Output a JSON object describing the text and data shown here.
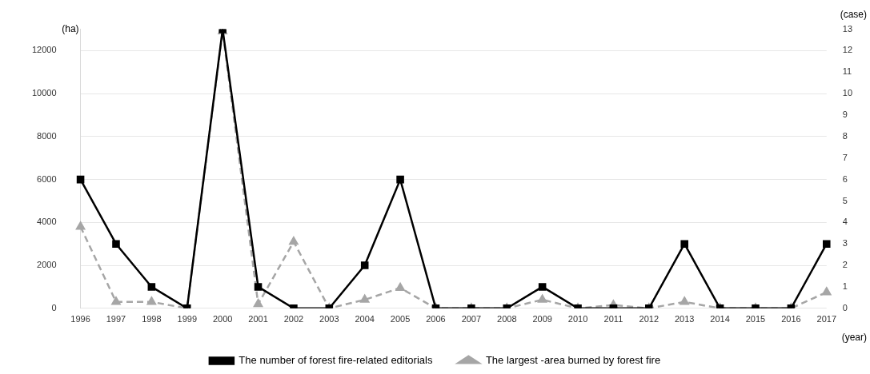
{
  "chart_data": {
    "type": "line",
    "ylabel": "(ha)",
    "y2label": "(case)",
    "xlabel": "(year)",
    "categories": [
      "1996",
      "1997",
      "1998",
      "1999",
      "2000",
      "2001",
      "2002",
      "2003",
      "2004",
      "2005",
      "2006",
      "2007",
      "2008",
      "2009",
      "2010",
      "2011",
      "2012",
      "2013",
      "2014",
      "2015",
      "2016",
      "2017"
    ],
    "series": [
      {
        "name": "The largest -area burned by forest fire",
        "color": "#a6a6a6",
        "marker": "triangle",
        "line_style": "dashed",
        "values": [
          3800,
          300,
          300,
          0,
          12900,
          200,
          3100,
          0,
          400,
          950,
          0,
          0,
          0,
          400,
          0,
          150,
          0,
          300,
          0,
          0,
          0,
          750
        ]
      },
      {
        "name": "The number of forest fire-related editorials",
        "color": "#000000",
        "marker": "square",
        "line_style": "solid",
        "axis": "y2",
        "values": [
          6,
          3,
          1,
          0,
          13,
          1,
          0,
          0,
          2,
          6,
          0,
          0,
          0,
          1,
          0,
          0,
          0,
          3,
          0,
          0,
          0,
          3
        ]
      }
    ],
    "ylim": [
      0,
      13000
    ],
    "yticks": [
      0,
      2000,
      4000,
      6000,
      8000,
      10000,
      12000
    ],
    "y2lim": [
      0,
      13
    ],
    "y2ticks": [
      0,
      1,
      2,
      3,
      4,
      5,
      6,
      7,
      8,
      9,
      10,
      11,
      12,
      13
    ],
    "grid": "y",
    "legend": "bottom"
  }
}
